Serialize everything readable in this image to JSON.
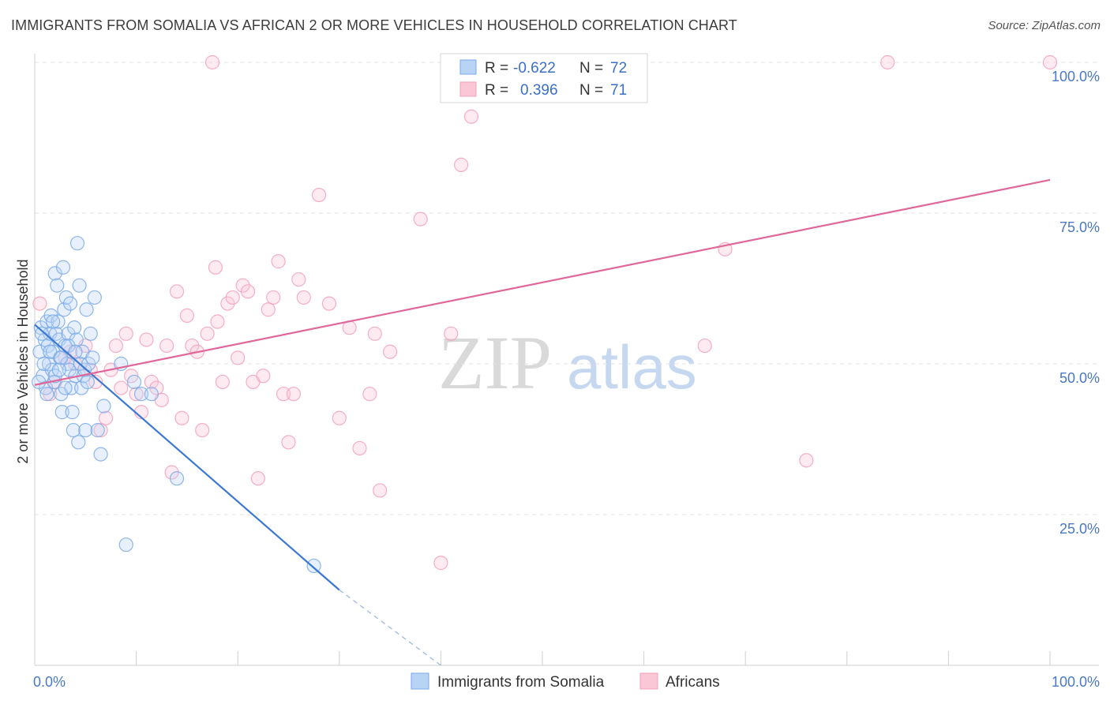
{
  "title": "IMMIGRANTS FROM SOMALIA VS AFRICAN 2 OR MORE VEHICLES IN HOUSEHOLD CORRELATION CHART",
  "source": "Source: ZipAtlas.com",
  "watermark": {
    "zip": "ZIP",
    "atlas": "atlas"
  },
  "chart_data": {
    "type": "scatter",
    "ylabel": "2 or more Vehicles in Household",
    "xlim": [
      0,
      100
    ],
    "ylim": [
      0,
      100
    ],
    "x_tick_labels": [
      "0.0%",
      "100.0%"
    ],
    "y_ticks": [
      25,
      50,
      75,
      100
    ],
    "y_tick_labels": [
      "25.0%",
      "50.0%",
      "75.0%",
      "100.0%"
    ],
    "grid": true,
    "legend": {
      "placement": "top-center",
      "entries": [
        {
          "r_label": "R =",
          "r_value": "-0.622",
          "n_label": "N =",
          "n_value": "72"
        },
        {
          "r_label": "R =",
          "r_value": "0.396",
          "n_label": "N =",
          "n_value": "71"
        }
      ]
    },
    "series": [
      {
        "name": "Immigrants from Somalia",
        "color": "#7aaae8",
        "line_color": "#3a78d4",
        "trend": {
          "x0": 0,
          "y0": 56.5,
          "x1": 30,
          "y1": 12.5,
          "dash_x1": 40,
          "dash_y1": -2
        },
        "points": [
          [
            0.5,
            52
          ],
          [
            0.6,
            56
          ],
          [
            0.8,
            48
          ],
          [
            1,
            54
          ],
          [
            1.1,
            46
          ],
          [
            1.2,
            57
          ],
          [
            1.3,
            53
          ],
          [
            1.4,
            50
          ],
          [
            1.5,
            55
          ],
          [
            1.6,
            58
          ],
          [
            1.7,
            49
          ],
          [
            1.8,
            52
          ],
          [
            1.9,
            47
          ],
          [
            2,
            65
          ],
          [
            2.1,
            55
          ],
          [
            2.2,
            63
          ],
          [
            2.3,
            57
          ],
          [
            2.4,
            54
          ],
          [
            2.5,
            51
          ],
          [
            2.6,
            45
          ],
          [
            2.7,
            42
          ],
          [
            2.8,
            66
          ],
          [
            2.9,
            59
          ],
          [
            3,
            53
          ],
          [
            3.1,
            61
          ],
          [
            3.2,
            50
          ],
          [
            3.3,
            55
          ],
          [
            3.4,
            49
          ],
          [
            3.5,
            60
          ],
          [
            3.6,
            46
          ],
          [
            3.7,
            42
          ],
          [
            3.8,
            39
          ],
          [
            3.9,
            56
          ],
          [
            4,
            48
          ],
          [
            4.1,
            54
          ],
          [
            4.2,
            70
          ],
          [
            4.3,
            37
          ],
          [
            4.4,
            63
          ],
          [
            4.5,
            50
          ],
          [
            4.6,
            46
          ],
          [
            4.7,
            52
          ],
          [
            4.8,
            48
          ],
          [
            4.9,
            49
          ],
          [
            5,
            39
          ],
          [
            5.1,
            59
          ],
          [
            5.2,
            47
          ],
          [
            5.3,
            50
          ],
          [
            5.5,
            55
          ],
          [
            5.7,
            51
          ],
          [
            5.9,
            61
          ],
          [
            6.2,
            39
          ],
          [
            6.5,
            35
          ],
          [
            6.8,
            43
          ],
          [
            8.5,
            50
          ],
          [
            9,
            20
          ],
          [
            9.8,
            47
          ],
          [
            10.5,
            45
          ],
          [
            11.5,
            45
          ],
          [
            14,
            31
          ],
          [
            27.5,
            16.5
          ],
          [
            0.7,
            55
          ],
          [
            1.5,
            52
          ],
          [
            2.0,
            48
          ],
          [
            2.6,
            51
          ],
          [
            3.3,
            53
          ],
          [
            1.2,
            45
          ],
          [
            0.9,
            50
          ],
          [
            4.0,
            52
          ],
          [
            1.8,
            57
          ],
          [
            2.4,
            49
          ],
          [
            0.4,
            47
          ],
          [
            3.0,
            46
          ]
        ]
      },
      {
        "name": "Africans",
        "color": "#f4a0ba",
        "line_color": "#e0679a",
        "trend": {
          "x0": 0,
          "y0": 46.5,
          "x1": 100,
          "y1": 80.5
        },
        "points": [
          [
            0.5,
            60
          ],
          [
            1.5,
            45
          ],
          [
            3,
            51
          ],
          [
            4,
            50
          ],
          [
            5,
            53
          ],
          [
            6,
            47
          ],
          [
            6.5,
            39
          ],
          [
            7,
            41
          ],
          [
            7.5,
            49
          ],
          [
            8,
            53
          ],
          [
            8.5,
            46
          ],
          [
            9,
            55
          ],
          [
            9.5,
            48
          ],
          [
            10,
            45
          ],
          [
            10.5,
            42
          ],
          [
            11,
            54
          ],
          [
            11.5,
            47
          ],
          [
            12,
            46
          ],
          [
            12.5,
            44
          ],
          [
            13,
            53
          ],
          [
            13.5,
            32
          ],
          [
            14,
            62
          ],
          [
            14.5,
            41
          ],
          [
            15,
            58
          ],
          [
            15.5,
            53
          ],
          [
            16,
            52
          ],
          [
            16.5,
            39
          ],
          [
            17,
            55
          ],
          [
            17.5,
            100
          ],
          [
            17.8,
            66
          ],
          [
            18,
            57
          ],
          [
            18.5,
            47
          ],
          [
            19,
            60
          ],
          [
            19.5,
            61
          ],
          [
            20,
            51
          ],
          [
            20.5,
            63
          ],
          [
            21,
            62
          ],
          [
            21.5,
            47
          ],
          [
            22,
            31
          ],
          [
            22.5,
            48
          ],
          [
            23,
            59
          ],
          [
            23.5,
            61
          ],
          [
            24,
            67
          ],
          [
            24.5,
            45
          ],
          [
            25,
            37
          ],
          [
            25.5,
            45
          ],
          [
            26,
            64
          ],
          [
            26.5,
            61
          ],
          [
            28,
            78
          ],
          [
            29,
            60
          ],
          [
            30,
            41
          ],
          [
            31,
            56
          ],
          [
            32,
            36
          ],
          [
            33,
            45
          ],
          [
            33.5,
            55
          ],
          [
            34,
            29
          ],
          [
            35,
            52
          ],
          [
            38,
            74
          ],
          [
            40,
            17
          ],
          [
            41,
            55
          ],
          [
            42,
            83
          ],
          [
            43,
            91
          ],
          [
            55,
            100
          ],
          [
            66,
            53
          ],
          [
            68,
            69
          ],
          [
            76,
            34
          ],
          [
            84,
            100
          ],
          [
            100,
            100
          ],
          [
            2,
            47
          ],
          [
            3.5,
            52
          ],
          [
            5.5,
            49
          ]
        ]
      }
    ]
  }
}
